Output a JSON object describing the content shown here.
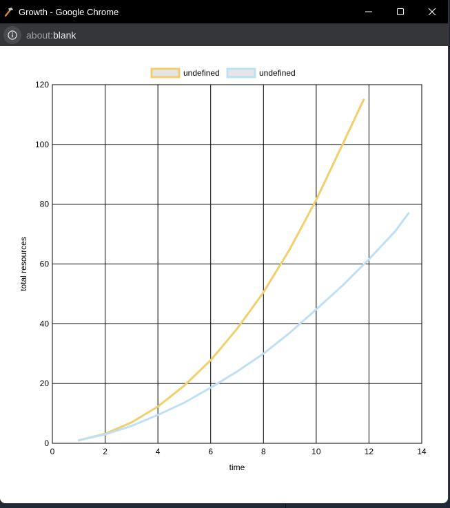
{
  "window": {
    "title": "Growth - Google Chrome",
    "url_scheme": "about:",
    "url_page": "blank",
    "icons": {
      "app": "hammer-icon",
      "minimize": "minimize-icon",
      "maximize": "maximize-icon",
      "close": "close-icon",
      "info": "info-icon"
    }
  },
  "chart_data": {
    "type": "line",
    "title": "",
    "xlabel": "time",
    "ylabel": "total resources",
    "xlim": [
      0,
      14
    ],
    "ylim": [
      0,
      120
    ],
    "xticks": [
      0,
      2,
      4,
      6,
      8,
      10,
      12,
      14
    ],
    "yticks": [
      0,
      20,
      40,
      60,
      80,
      100,
      120
    ],
    "grid": true,
    "legend": "top-center",
    "series": [
      {
        "name": "undefined",
        "color": "#f0cf6c",
        "x": [
          1,
          2,
          3,
          4,
          5,
          6,
          7,
          8,
          9,
          10,
          11,
          11.8
        ],
        "y": [
          1,
          3.2,
          7,
          12.3,
          19.3,
          27.8,
          38.3,
          50.5,
          65,
          81.5,
          100,
          115
        ]
      },
      {
        "name": "undefined",
        "color": "#bde0f4",
        "x": [
          1,
          2,
          3,
          4,
          5,
          6,
          7,
          8,
          9,
          10,
          11,
          12,
          13,
          13.5
        ],
        "y": [
          1,
          3,
          5.8,
          9.5,
          13.6,
          18.6,
          24,
          30,
          37,
          44.8,
          52.8,
          61.6,
          71,
          77
        ]
      }
    ]
  }
}
